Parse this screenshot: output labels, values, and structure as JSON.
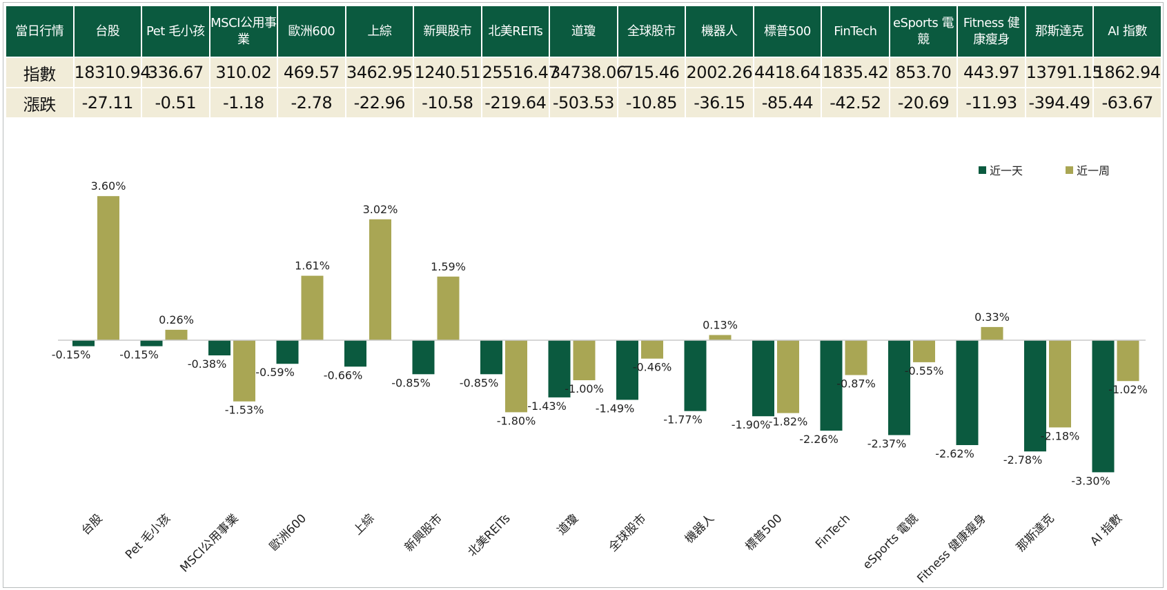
{
  "table": {
    "header_label": "當日行情",
    "columns": [
      "台股",
      "Pet 毛小孩",
      "MSCI公用事業",
      "歐洲600",
      "上綜",
      "新興股市",
      "北美REITs",
      "道瓊",
      "全球股市",
      "機器人",
      "標普500",
      "FinTech",
      "eSports 電競",
      "Fitness 健康瘦身",
      "那斯達克",
      "AI 指數"
    ],
    "rows": [
      {
        "label": "指數",
        "values": [
          "18310.94",
          "336.67",
          "310.02",
          "469.57",
          "3462.95",
          "1240.51",
          "25516.47",
          "34738.06",
          "715.46",
          "2002.26",
          "4418.64",
          "1835.42",
          "853.70",
          "443.97",
          "13791.15",
          "1862.94"
        ]
      },
      {
        "label": "漲跌",
        "values": [
          "-27.11",
          "-0.51",
          "-1.18",
          "-2.78",
          "-22.96",
          "-10.58",
          "-219.64",
          "-503.53",
          "-10.85",
          "-36.15",
          "-85.44",
          "-42.52",
          "-20.69",
          "-11.93",
          "-394.49",
          "-63.67"
        ]
      }
    ]
  },
  "chart_data": {
    "type": "bar",
    "categories": [
      "台股",
      "Pet 毛小孩",
      "MSCI公用事業",
      "歐洲600",
      "上綜",
      "新興股市",
      "北美REITs",
      "道瓊",
      "全球股市",
      "機器人",
      "標普500",
      "FinTech",
      "eSports 電競",
      "Fitness 健康瘦身",
      "那斯達克",
      "AI 指數"
    ],
    "series": [
      {
        "name": "近一天",
        "color": "#0b5a3f",
        "values": [
          -0.15,
          -0.15,
          -0.38,
          -0.59,
          -0.66,
          -0.85,
          -0.85,
          -1.43,
          -1.49,
          -1.77,
          -1.9,
          -2.26,
          -2.37,
          -2.62,
          -2.78,
          -3.3
        ]
      },
      {
        "name": "近一周",
        "color": "#a9a654",
        "values": [
          3.6,
          0.26,
          -1.53,
          1.61,
          3.02,
          1.59,
          -1.8,
          -1.0,
          -0.46,
          0.13,
          -1.82,
          -0.87,
          -0.55,
          0.33,
          -2.18,
          -1.02
        ]
      }
    ],
    "data_label_suffix": "%",
    "ylim": [
      -3.5,
      4.0
    ],
    "legend": "top-right",
    "grid": false
  }
}
